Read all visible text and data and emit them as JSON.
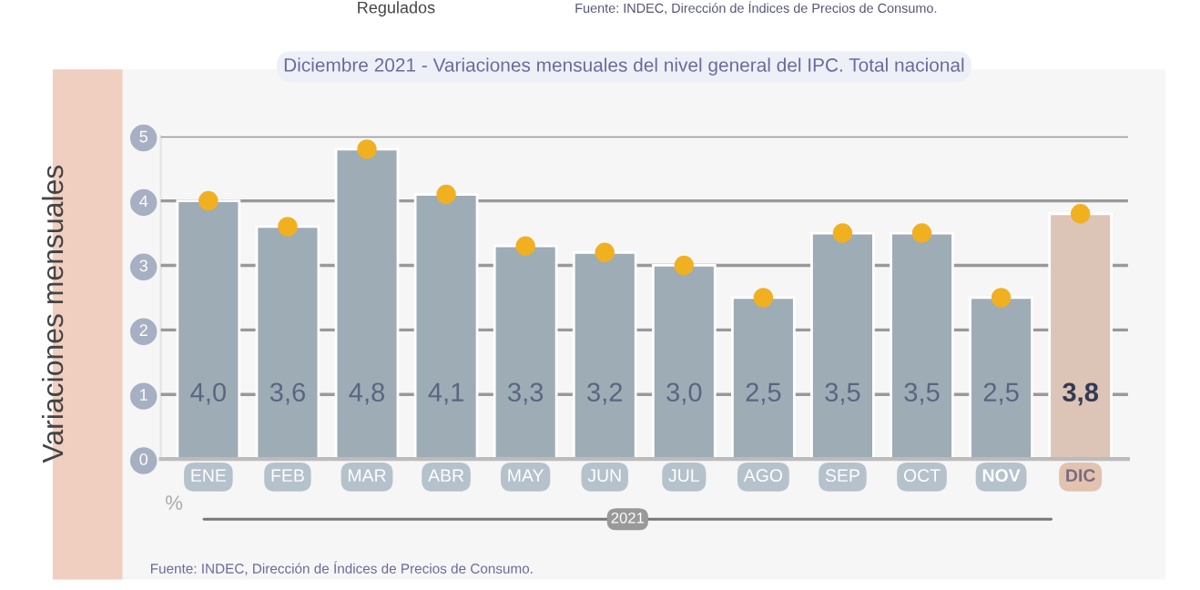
{
  "chart_data": {
    "type": "bar",
    "title": "Diciembre 2021 - Variaciones mensuales del nivel general del IPC. Total nacional",
    "ylabel": "Variaciones mensuales",
    "categories": [
      "ENE",
      "FEB",
      "MAR",
      "ABR",
      "MAY",
      "JUN",
      "JUL",
      "AGO",
      "SEP",
      "OCT",
      "NOV",
      "DIC"
    ],
    "series": [
      {
        "values": [
          4.0,
          3.6,
          4.8,
          4.1,
          3.3,
          3.2,
          3.0,
          2.5,
          3.5,
          3.5,
          2.5,
          3.8
        ],
        "value_labels": [
          "4,0",
          "3,6",
          "4,8",
          "4,1",
          "3,3",
          "3,2",
          "3,0",
          "2,5",
          "3,5",
          "3,5",
          "2,5",
          "3,8"
        ],
        "colors": [
          "#9aacba",
          "#9aacba",
          "#9aacba",
          "#9aacba",
          "#9aacba",
          "#9aacba",
          "#9aacba",
          "#9aacba",
          "#9aacba",
          "#9aacba",
          "#9aacba",
          "#e2c3b0"
        ]
      },
      {
        "type": "scatter",
        "x": [
          "ENE",
          "FEB",
          "MAR",
          "ABR",
          "MAY",
          "JUN",
          "JUL",
          "AGO",
          "SEP",
          "OCT",
          "NOV",
          "DIC"
        ],
        "values": [
          4.0,
          3.6,
          4.8,
          4.1,
          3.3,
          3.2,
          3.0,
          2.5,
          3.5,
          3.5,
          2.5,
          3.8
        ],
        "color": "#f0b020"
      }
    ],
    "ylim": [
      0,
      5
    ],
    "yticks": [
      0,
      1,
      2,
      3,
      4,
      5
    ],
    "grid": "y",
    "marker": "circle",
    "legend": false,
    "annotations": [
      "Regulados",
      "Fuente: INDEC, Dirección de Índices de Precios de Consumo.",
      "%",
      "2021",
      "Fuente: INDEC, Dirección de Índices de Precios de Consumo."
    ]
  }
}
